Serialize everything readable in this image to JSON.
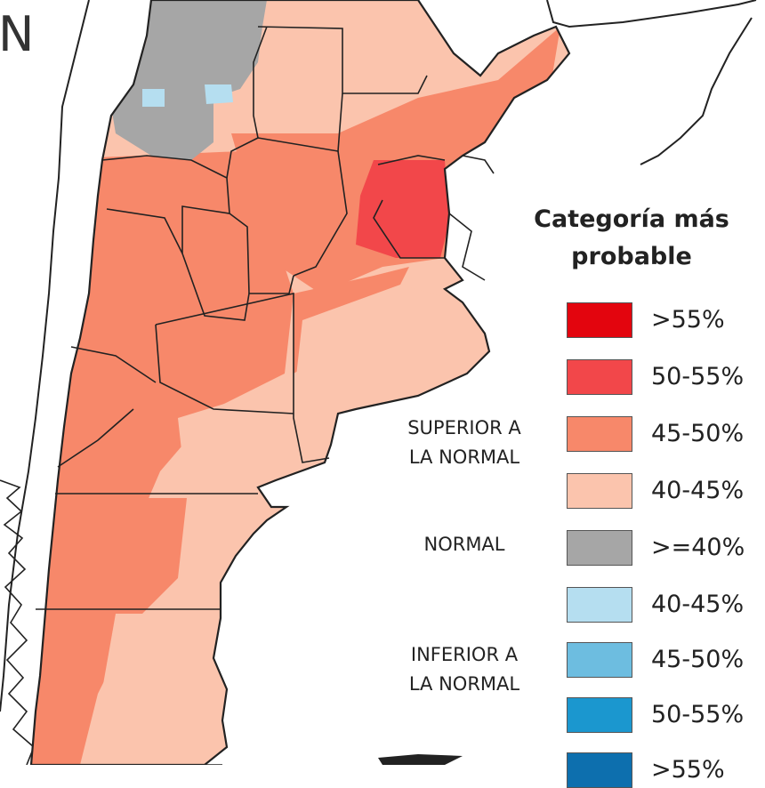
{
  "map": {
    "corner_letter": "N",
    "colors": {
      "sup_gt55": "#e3050e",
      "sup_50_55": "#f2474a",
      "sup_45_50": "#f7886a",
      "sup_40_45": "#fbc4ad",
      "normal": "#a6a6a6",
      "inf_40_45": "#b5def0",
      "inf_45_50": "#6dbde0",
      "inf_50_55": "#1b97cf",
      "inf_gt55": "#0d6fae"
    }
  },
  "legend": {
    "title_line1": "Categoría más",
    "title_line2": "probable",
    "groups": {
      "superior_line1": "SUPERIOR A",
      "superior_line2": "LA NORMAL",
      "normal": "NORMAL",
      "inferior_line1": "INFERIOR A",
      "inferior_line2": "LA NORMAL"
    },
    "items": [
      {
        "label": ">55%",
        "color": "#e3050e"
      },
      {
        "label": "50-55%",
        "color": "#f2474a"
      },
      {
        "label": "45-50%",
        "color": "#f7886a"
      },
      {
        "label": "40-45%",
        "color": "#fbc4ad"
      },
      {
        "label": ">=40%",
        "color": "#a6a6a6"
      },
      {
        "label": "40-45%",
        "color": "#b5def0"
      },
      {
        "label": "45-50%",
        "color": "#6dbde0"
      },
      {
        "label": "50-55%",
        "color": "#1b97cf"
      },
      {
        "label": ">55%",
        "color": "#0d6fae"
      }
    ]
  }
}
